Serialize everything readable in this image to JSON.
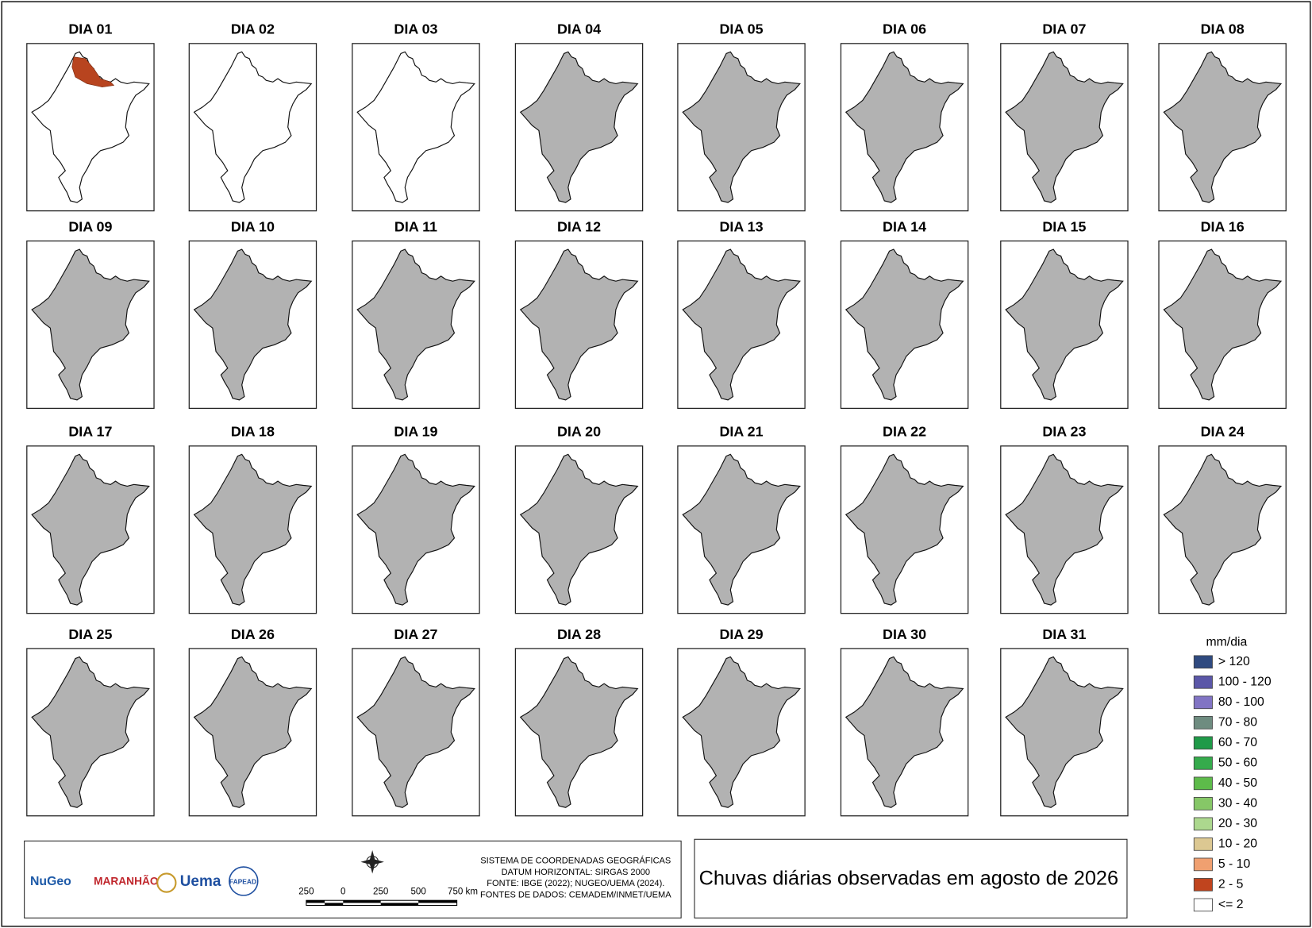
{
  "title": "Chuvas diárias observadas em agosto de 2026",
  "panels": [
    {
      "title": "DIA 01",
      "color": "#ffffff",
      "patch_color": "#b8441f"
    },
    {
      "title": "DIA 02",
      "color": "#ffffff"
    },
    {
      "title": "DIA 03",
      "color": "#ffffff"
    },
    {
      "title": "DIA 04",
      "color": "#b2b2b2"
    },
    {
      "title": "DIA 05",
      "color": "#b2b2b2"
    },
    {
      "title": "DIA 06",
      "color": "#b2b2b2"
    },
    {
      "title": "DIA 07",
      "color": "#b2b2b2"
    },
    {
      "title": "DIA 08",
      "color": "#b2b2b2"
    },
    {
      "title": "DIA 09",
      "color": "#b2b2b2"
    },
    {
      "title": "DIA 10",
      "color": "#b2b2b2"
    },
    {
      "title": "DIA 11",
      "color": "#b2b2b2"
    },
    {
      "title": "DIA 12",
      "color": "#b2b2b2"
    },
    {
      "title": "DIA 13",
      "color": "#b2b2b2"
    },
    {
      "title": "DIA 14",
      "color": "#b2b2b2"
    },
    {
      "title": "DIA 15",
      "color": "#b2b2b2"
    },
    {
      "title": "DIA 16",
      "color": "#b2b2b2"
    },
    {
      "title": "DIA 17",
      "color": "#b2b2b2"
    },
    {
      "title": "DIA 18",
      "color": "#b2b2b2"
    },
    {
      "title": "DIA 19",
      "color": "#b2b2b2"
    },
    {
      "title": "DIA 20",
      "color": "#b2b2b2"
    },
    {
      "title": "DIA 21",
      "color": "#b2b2b2"
    },
    {
      "title": "DIA 22",
      "color": "#b2b2b2"
    },
    {
      "title": "DIA 23",
      "color": "#b2b2b2"
    },
    {
      "title": "DIA 24",
      "color": "#b2b2b2"
    },
    {
      "title": "DIA 25",
      "color": "#b2b2b2"
    },
    {
      "title": "DIA 26",
      "color": "#b2b2b2"
    },
    {
      "title": "DIA 27",
      "color": "#b2b2b2"
    },
    {
      "title": "DIA 28",
      "color": "#b2b2b2"
    },
    {
      "title": "DIA 29",
      "color": "#b2b2b2"
    },
    {
      "title": "DIA 30",
      "color": "#b2b2b2"
    },
    {
      "title": "DIA 31",
      "color": "#b2b2b2"
    }
  ],
  "legend": {
    "title": "mm/dia",
    "items": [
      {
        "label": "> 120",
        "color": "#2f4a80"
      },
      {
        "label": "100 - 120",
        "color": "#5b57a8"
      },
      {
        "label": "80 - 100",
        "color": "#8174c4"
      },
      {
        "label": "70 - 80",
        "color": "#6e8c80"
      },
      {
        "label": "60 - 70",
        "color": "#1f9a48"
      },
      {
        "label": "50 - 60",
        "color": "#35ab4c"
      },
      {
        "label": "40 - 50",
        "color": "#5dbb4a"
      },
      {
        "label": "30 - 40",
        "color": "#86c767"
      },
      {
        "label": "20 - 30",
        "color": "#acd88e"
      },
      {
        "label": "10 - 20",
        "color": "#dcc892"
      },
      {
        "label": "5 - 10",
        "color": "#f0a070"
      },
      {
        "label": "2 - 5",
        "color": "#c0441e"
      },
      {
        "label": "<= 2",
        "color": "#ffffff"
      }
    ]
  },
  "scale_labels": [
    "250",
    "0",
    "250",
    "500",
    "750 km"
  ],
  "credits": [
    "SISTEMA DE COORDENADAS GEOGRÁFICAS",
    "DATUM HORIZONTAL: SIRGAS 2000",
    "FONTE: IBGE (2022); NUGEO/UEMA (2024).",
    "FONTES DE DADOS: CEMADEM/INMET/UEMA"
  ],
  "logos": [
    "NuGeo",
    "MARANHÃO",
    "Uema",
    "FAPEAD"
  ]
}
